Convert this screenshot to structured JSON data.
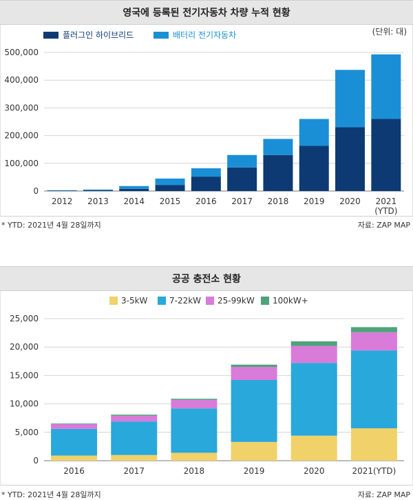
{
  "chart_data": [
    {
      "type": "bar",
      "stacked": true,
      "title": "영국에 등록된 전기자동차 차량 누적 현황",
      "unit_label": "(단위: 대)",
      "categories": [
        "2012",
        "2013",
        "2014",
        "2015",
        "2016",
        "2017",
        "2018",
        "2019",
        "2020",
        "2021\n(YTD)"
      ],
      "series": [
        {
          "name": "플러그인 하이브리드",
          "color": "#0d3a73",
          "values": [
            1500,
            3000,
            8000,
            22000,
            52000,
            85000,
            130000,
            163000,
            230000,
            260000
          ]
        },
        {
          "name": "배터리 전기자동차",
          "color": "#1a8fd6",
          "values": [
            1500,
            2500,
            10000,
            23000,
            30000,
            45000,
            58000,
            97000,
            207000,
            233000
          ]
        }
      ],
      "ylim": [
        0,
        500000
      ],
      "yticks": [
        "0",
        "100,000",
        "200,000",
        "300,000",
        "400,000",
        "500,000"
      ],
      "ytick_values": [
        0,
        100000,
        200000,
        300000,
        400000,
        500000
      ],
      "grid": true,
      "legend": "top-left",
      "footnote": "* YTD: 2021년 4월 28일까지",
      "source": "자료: ZAP MAP"
    },
    {
      "type": "bar",
      "stacked": true,
      "title": "공공 충전소 현황",
      "categories": [
        "2016",
        "2017",
        "2018",
        "2019",
        "2020",
        "2021(YTD)"
      ],
      "series": [
        {
          "name": "3-5kW",
          "color": "#f1d16a",
          "values": [
            900,
            1000,
            1400,
            3300,
            4400,
            5700
          ]
        },
        {
          "name": "7-22kW",
          "color": "#29a8dc",
          "values": [
            4700,
            5900,
            7800,
            10900,
            12800,
            13700
          ]
        },
        {
          "name": "25-99kW",
          "color": "#d97bd8",
          "values": [
            850,
            1000,
            1500,
            2300,
            3000,
            3200
          ]
        },
        {
          "name": "100kW+",
          "color": "#4fa37b",
          "values": [
            100,
            200,
            200,
            400,
            800,
            900
          ]
        }
      ],
      "ylim": [
        0,
        25000
      ],
      "yticks": [
        "0",
        "5,000",
        "10,000",
        "15,000",
        "20,000",
        "25,000"
      ],
      "ytick_values": [
        0,
        5000,
        10000,
        15000,
        20000,
        25000
      ],
      "grid": true,
      "legend": "top-center",
      "footnote": "* YTD: 2021년 4월 28일까지",
      "source": "자료: ZAP MAP"
    }
  ]
}
